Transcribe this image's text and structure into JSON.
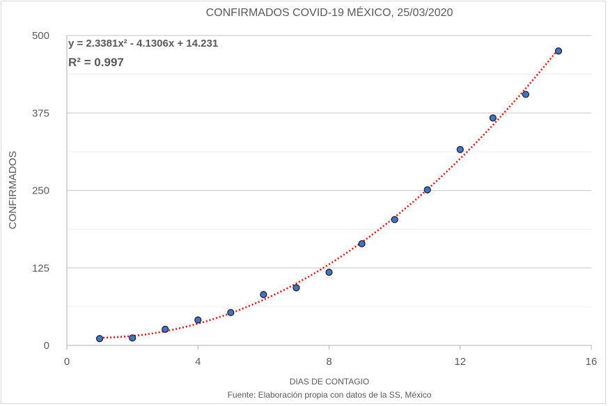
{
  "chart_data": {
    "type": "scatter",
    "title": "CONFIRMADOS COVID-19 MÉXICO, 25/03/2020",
    "xlabel": "DIAS DE CONTAGIO",
    "ylabel": "CONFIRMADOS",
    "xlim": [
      0,
      16
    ],
    "ylim": [
      0,
      500
    ],
    "xticks": [
      0,
      4,
      8,
      12,
      16
    ],
    "yticks": [
      0,
      125,
      250,
      375,
      500
    ],
    "grid": true,
    "x": [
      1,
      2,
      3,
      4,
      5,
      6,
      7,
      8,
      9,
      10,
      11,
      12,
      13,
      14,
      15
    ],
    "y": [
      11,
      12,
      26,
      41,
      53,
      82,
      93,
      118,
      164,
      203,
      251,
      316,
      367,
      405,
      475
    ],
    "marker_color": "#4472c4",
    "trendline": {
      "type": "polynomial",
      "coefficients": [
        2.3381,
        -4.1306,
        14.231
      ],
      "equation": "y = 2.3381x² - 4.1306x + 14.231",
      "r2": "R² = 0.997",
      "color": "#ff0000"
    },
    "source": "Fuente: Elaboración propia con datos de la SS, México"
  }
}
